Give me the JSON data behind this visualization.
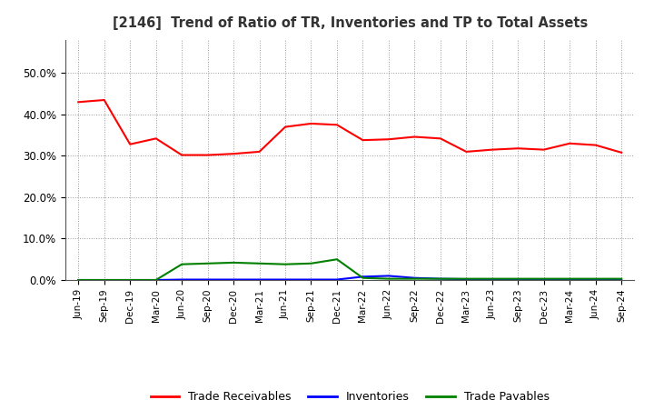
{
  "title": "[2146]  Trend of Ratio of TR, Inventories and TP to Total Assets",
  "x_labels": [
    "Jun-19",
    "Sep-19",
    "Dec-19",
    "Mar-20",
    "Jun-20",
    "Sep-20",
    "Dec-20",
    "Mar-21",
    "Jun-21",
    "Sep-21",
    "Dec-21",
    "Mar-22",
    "Jun-22",
    "Sep-22",
    "Dec-22",
    "Mar-23",
    "Jun-23",
    "Sep-23",
    "Dec-23",
    "Mar-24",
    "Jun-24",
    "Sep-24"
  ],
  "trade_receivables": [
    0.43,
    0.435,
    0.328,
    0.342,
    0.302,
    0.302,
    0.305,
    0.31,
    0.37,
    0.378,
    0.375,
    0.338,
    0.34,
    0.346,
    0.342,
    0.31,
    0.315,
    0.318,
    0.315,
    0.33,
    0.326,
    0.308
  ],
  "inventories": [
    0.0,
    0.0,
    0.0,
    0.0,
    0.001,
    0.001,
    0.001,
    0.001,
    0.001,
    0.001,
    0.001,
    0.008,
    0.01,
    0.005,
    0.003,
    0.002,
    0.002,
    0.001,
    0.001,
    0.001,
    0.001,
    0.001
  ],
  "trade_payables": [
    0.0,
    0.0,
    0.0,
    0.0,
    0.038,
    0.04,
    0.042,
    0.04,
    0.038,
    0.04,
    0.05,
    0.005,
    0.003,
    0.003,
    0.003,
    0.003,
    0.003,
    0.003,
    0.003,
    0.003,
    0.003,
    0.003
  ],
  "tr_color": "#ff0000",
  "inv_color": "#0000ff",
  "tp_color": "#008000",
  "background_color": "#ffffff",
  "grid_color": "#999999",
  "ylim": [
    0.0,
    0.58
  ],
  "yticks": [
    0.0,
    0.1,
    0.2,
    0.3,
    0.4,
    0.5
  ],
  "legend_labels": [
    "Trade Receivables",
    "Inventories",
    "Trade Payables"
  ]
}
